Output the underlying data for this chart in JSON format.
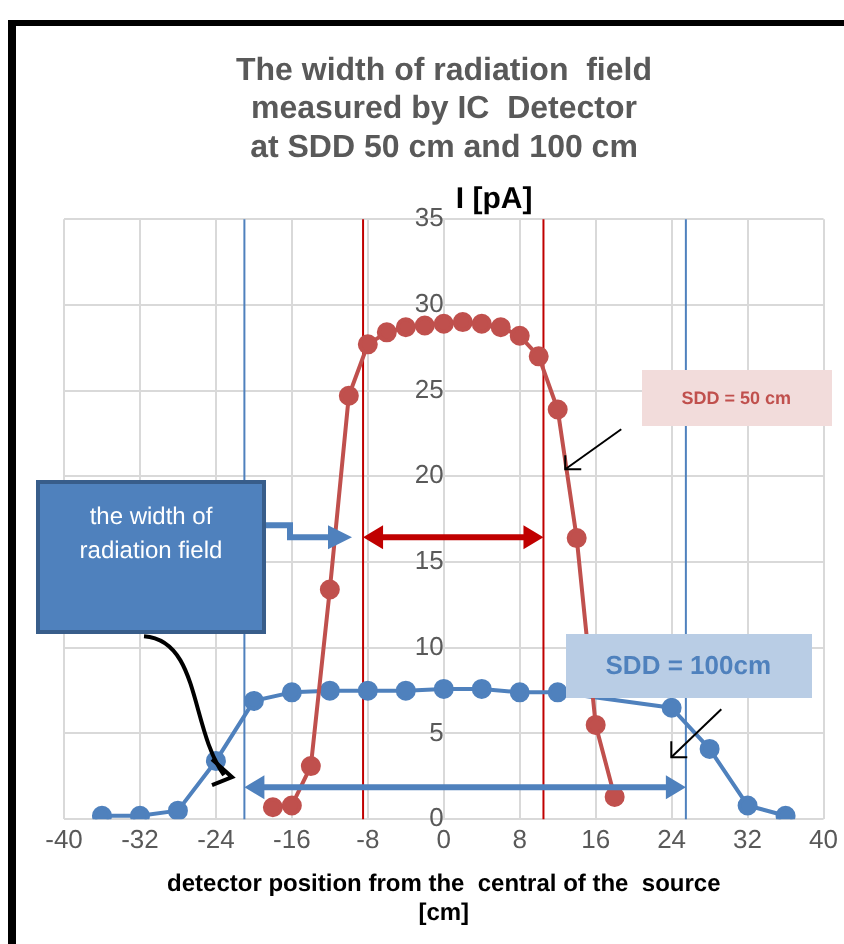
{
  "chart_data": {
    "type": "line",
    "title": "The width of radiation  field\nmeasured by IC  Detector\nat SDD 50 cm and 100 cm",
    "xlabel": "detector position from the  central of the  source\n[cm]",
    "ylabel": "I [pA]",
    "xlim": [
      -40,
      40
    ],
    "xticks": [
      -40,
      -32,
      -24,
      -16,
      -8,
      0,
      8,
      16,
      24,
      32,
      40
    ],
    "ylim": [
      0,
      35
    ],
    "yticks": [
      0,
      5,
      10,
      15,
      20,
      25,
      30,
      35
    ],
    "grid": true,
    "legend": false,
    "marker": "circle",
    "line_style": "solid",
    "series": [
      {
        "name": "SDD = 50 cm",
        "color": "#c0504d",
        "x": [
          -18,
          -16,
          -14,
          -12,
          -10,
          -8,
          -6,
          -4,
          -2,
          0,
          2,
          4,
          6,
          8,
          10,
          12,
          14,
          16,
          18
        ],
        "values": [
          0.7,
          0.8,
          3.1,
          13.4,
          24.7,
          27.7,
          28.4,
          28.7,
          28.8,
          28.9,
          29.0,
          28.9,
          28.7,
          28.2,
          27.0,
          23.9,
          16.4,
          5.5,
          1.3
        ]
      },
      {
        "name": "SDD = 100cm",
        "color": "#4f81bd",
        "x": [
          -36,
          -32,
          -28,
          -24,
          -20,
          -16,
          -12,
          -8,
          -4,
          0,
          4,
          8,
          12,
          16,
          20,
          24,
          28,
          32,
          36
        ],
        "values": [
          0.2,
          0.2,
          0.5,
          3.4,
          6.9,
          7.4,
          7.5,
          7.5,
          7.5,
          7.6,
          7.6,
          7.4,
          7.4,
          null,
          null,
          6.5,
          4.1,
          0.8,
          0.2
        ]
      }
    ],
    "ref_lines": [
      {
        "axis": "x",
        "value": -8.5,
        "color": "#c00000"
      },
      {
        "axis": "x",
        "value": 10.5,
        "color": "#c00000"
      },
      {
        "axis": "x",
        "value": -21,
        "color": "#4f81bd"
      },
      {
        "axis": "x",
        "value": 25.5,
        "color": "#4f81bd"
      }
    ],
    "annotations": [
      "the width of\nradiation field"
    ]
  }
}
